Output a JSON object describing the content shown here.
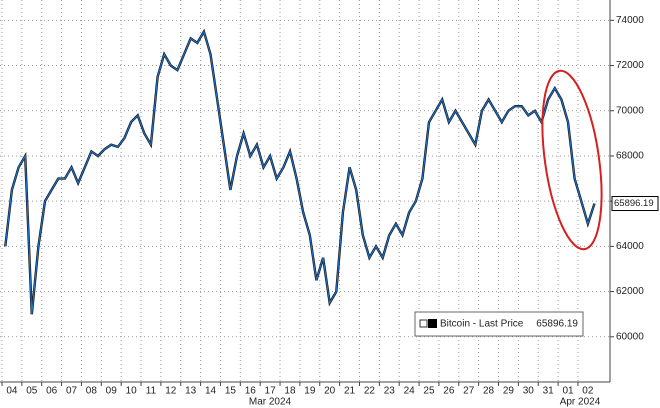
{
  "chart_data": {
    "type": "line",
    "categories": [
      null,
      "04",
      null,
      null,
      "05",
      null,
      null,
      "06",
      null,
      null,
      "07",
      null,
      null,
      "08",
      null,
      null,
      "09",
      null,
      null,
      "10",
      null,
      null,
      "11",
      null,
      null,
      "12",
      null,
      null,
      "13",
      null,
      null,
      "14",
      null,
      null,
      "15",
      null,
      null,
      "16",
      null,
      null,
      "17",
      null,
      null,
      "18",
      null,
      null,
      "19",
      null,
      null,
      "20",
      null,
      null,
      "21",
      null,
      null,
      "22",
      null,
      null,
      "23",
      null,
      null,
      "24",
      null,
      null,
      "25",
      null,
      null,
      "26",
      null,
      null,
      "27",
      null,
      null,
      "28",
      null,
      null,
      "29",
      null,
      null,
      "30",
      null,
      null,
      "31",
      null,
      null,
      "01",
      null,
      null,
      "02",
      null
    ],
    "x_group_labels": [
      "Mar 2024",
      "Apr 2024"
    ],
    "series": [
      {
        "name": "Bitcoin - Last Price",
        "color": "#1f6fc7",
        "values": [
          64000,
          66500,
          67500,
          68000,
          61000,
          64000,
          66000,
          66500,
          67000,
          67000,
          67500,
          66800,
          67500,
          68200,
          68000,
          68300,
          68500,
          68400,
          68800,
          69500,
          69800,
          69000,
          68500,
          71500,
          72500,
          72000,
          71800,
          72500,
          73200,
          73000,
          73500,
          72500,
          70500,
          68500,
          66500,
          68000,
          69000,
          68000,
          68500,
          67500,
          68000,
          67000,
          67500,
          68200,
          67000,
          65500,
          64500,
          62500,
          63500,
          61500,
          62000,
          65500,
          67500,
          66500,
          64500,
          63500,
          64000,
          63500,
          64500,
          65000,
          64500,
          65500,
          66000,
          67000,
          69500,
          70000,
          70500,
          69500,
          70000,
          69500,
          69000,
          68500,
          70000,
          70500,
          70000,
          69500,
          70000,
          70200,
          70200,
          69800,
          70000,
          69500,
          70500,
          71000,
          70500,
          69500,
          67000,
          66000,
          65000,
          65896.19
        ]
      }
    ],
    "ylim": [
      58000,
      74900
    ],
    "yticks": [
      60000,
      62000,
      64000,
      66000,
      68000,
      70000,
      72000,
      74000
    ],
    "grid": true
  }
}
